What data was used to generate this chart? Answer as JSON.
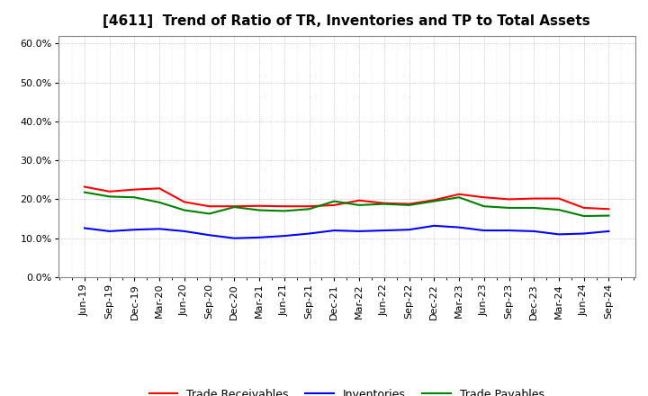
{
  "title": "[4611]  Trend of Ratio of TR, Inventories and TP to Total Assets",
  "x_labels": [
    "Jun-19",
    "Sep-19",
    "Dec-19",
    "Mar-20",
    "Jun-20",
    "Sep-20",
    "Dec-20",
    "Mar-21",
    "Jun-21",
    "Sep-21",
    "Dec-21",
    "Mar-22",
    "Jun-22",
    "Sep-22",
    "Dec-22",
    "Mar-23",
    "Jun-23",
    "Sep-23",
    "Dec-23",
    "Mar-24",
    "Jun-24",
    "Sep-24"
  ],
  "trade_receivables": [
    0.232,
    0.22,
    0.225,
    0.228,
    0.193,
    0.182,
    0.182,
    0.183,
    0.182,
    0.182,
    0.185,
    0.197,
    0.19,
    0.188,
    0.198,
    0.213,
    0.205,
    0.2,
    0.202,
    0.202,
    0.178,
    0.175
  ],
  "inventories": [
    0.126,
    0.118,
    0.122,
    0.124,
    0.118,
    0.108,
    0.1,
    0.102,
    0.106,
    0.112,
    0.12,
    0.118,
    0.12,
    0.122,
    0.132,
    0.128,
    0.12,
    0.12,
    0.118,
    0.11,
    0.112,
    0.118
  ],
  "trade_payables": [
    0.218,
    0.207,
    0.205,
    0.192,
    0.172,
    0.163,
    0.18,
    0.172,
    0.17,
    0.175,
    0.195,
    0.185,
    0.188,
    0.185,
    0.195,
    0.205,
    0.182,
    0.178,
    0.178,
    0.173,
    0.157,
    0.158
  ],
  "color_tr": "#FF0000",
  "color_inv": "#0000FF",
  "color_tp": "#008000",
  "ylim": [
    0.0,
    0.62
  ],
  "yticks": [
    0.0,
    0.1,
    0.2,
    0.3,
    0.4,
    0.5,
    0.6
  ],
  "legend_labels": [
    "Trade Receivables",
    "Inventories",
    "Trade Payables"
  ],
  "bg_color": "#FFFFFF",
  "plot_bg_color": "#FFFFFF",
  "title_fontsize": 11,
  "tick_fontsize": 8,
  "legend_fontsize": 9,
  "linewidth": 1.5
}
